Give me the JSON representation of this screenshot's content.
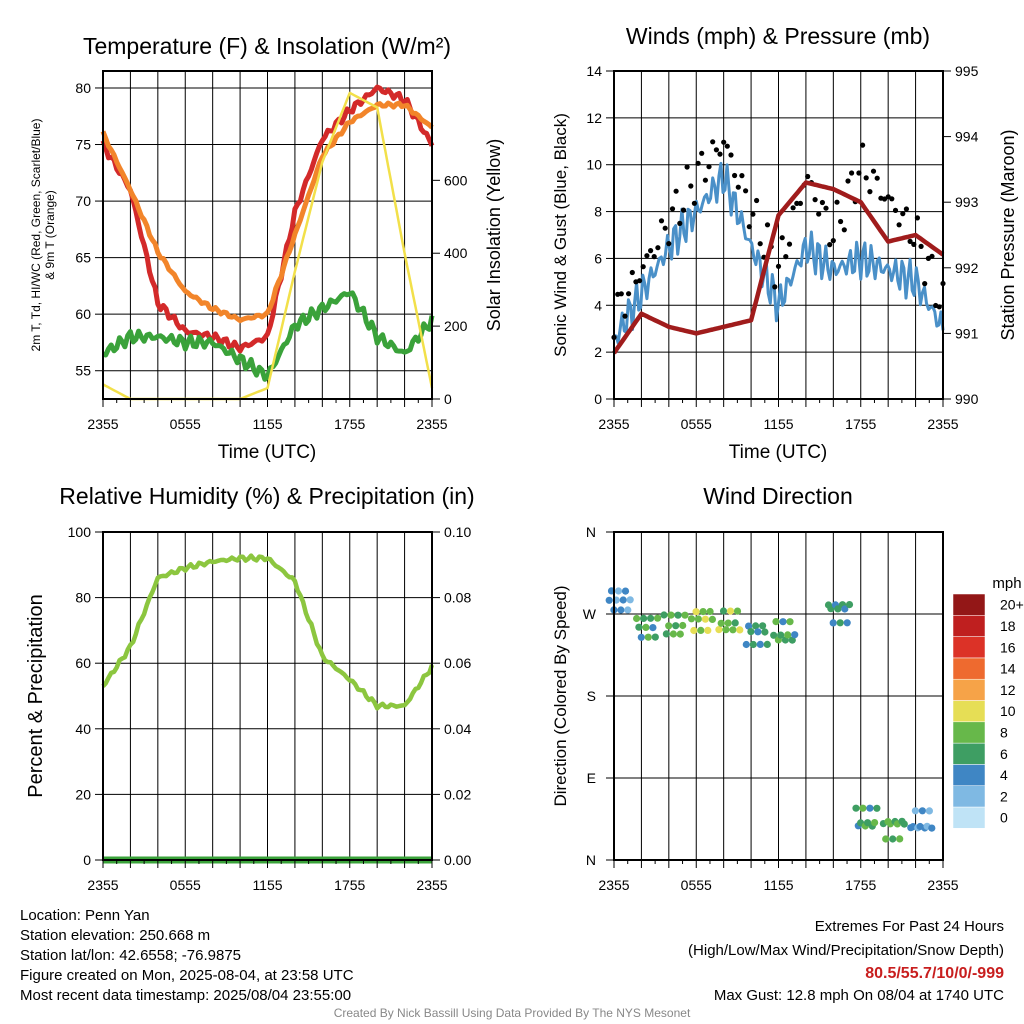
{
  "colors": {
    "temp": "#d32a2a",
    "dewpoint": "#3aa23a",
    "heat_index": "#4a90c8",
    "temp9m": "#f2852a",
    "solar": "#f2e04a",
    "wind": "#4a90c8",
    "gust": "#000000",
    "pressure": "#a01c1c",
    "rh": "#8cc63f",
    "precip": "#3aa23a",
    "extremes": "#c81e1e",
    "credit": "#888888"
  },
  "time_ticks": [
    "2355",
    "0555",
    "1155",
    "1755",
    "2355"
  ],
  "panels": {
    "temp": {
      "title": "Temperature (F) & Insolation (W/m²)",
      "ylabel_line1": "2m T, Td, HI/WC (Red, Green, Scarlet/Blue)",
      "ylabel_line2": "& 9m T (Orange)",
      "ylabel_right": "Solar Insolation (Yellow)",
      "xlabel": "Time (UTC)",
      "left_ticks": [
        "55",
        "60",
        "65",
        "70",
        "75",
        "80"
      ],
      "right_ticks": [
        "0",
        "200",
        "400",
        "600"
      ]
    },
    "wind": {
      "title": "Winds (mph) & Pressure (mb)",
      "ylabel_left": "Sonic Wind & Gust (Blue, Black)",
      "ylabel_right": "Station Pressure (Maroon)",
      "xlabel": "Time (UTC)",
      "left_ticks": [
        "0",
        "2",
        "4",
        "6",
        "8",
        "10",
        "12",
        "14"
      ],
      "right_ticks": [
        "990",
        "991",
        "992",
        "993",
        "994",
        "995"
      ]
    },
    "rh": {
      "title": "Relative Humidity (%) & Precipitation (in)",
      "ylabel_left": "Percent & Precipitation",
      "left_ticks": [
        "0",
        "20",
        "40",
        "60",
        "80",
        "100"
      ],
      "right_ticks": [
        "0.00",
        "0.02",
        "0.04",
        "0.06",
        "0.08",
        "0.10"
      ]
    },
    "dir": {
      "title": "Wind Direction",
      "ylabel_left": "Direction (Colored By Speed)",
      "left_ticks": [
        "N",
        "E",
        "S",
        "W",
        "N"
      ],
      "legend_title": "mph",
      "legend_labels": [
        "0",
        "2",
        "4",
        "6",
        "8",
        "10",
        "12",
        "14",
        "16",
        "18",
        "20+"
      ],
      "legend_colors": [
        "#bfe3f6",
        "#7fb9e3",
        "#3f86c4",
        "#3e9e63",
        "#67b84a",
        "#e6de55",
        "#f6a348",
        "#ee6a2f",
        "#dc3227",
        "#bf1f1f",
        "#931717"
      ]
    }
  },
  "chart_data": [
    {
      "type": "line",
      "title": "Temperature (F) & Insolation (W/m²)",
      "xlabel": "Time (UTC)",
      "ylabel": "2m T, Td, HI/WC (Red, Green, Scarlet/Blue) & 9m T (Orange)",
      "ylabel_right": "Solar Insolation (Yellow)",
      "x_hours": [
        0,
        2,
        4,
        6,
        8,
        10,
        12,
        14,
        16,
        18,
        20,
        22,
        24
      ],
      "x_ticks": [
        "2355",
        "0555",
        "1155",
        "1755",
        "2355"
      ],
      "ylim": [
        52.5,
        81.5
      ],
      "ylim_right": [
        0,
        900
      ],
      "series": [
        {
          "name": "2m T (Red)",
          "axis": "left",
          "values": [
            75,
            71,
            61,
            58.5,
            58,
            57,
            58,
            69,
            75.5,
            78,
            80,
            79,
            75
          ]
        },
        {
          "name": "Td (Green)",
          "axis": "left",
          "values": [
            56.5,
            58,
            58,
            57.5,
            57.5,
            56,
            54.5,
            59,
            60.5,
            62,
            58,
            56.5,
            59.5
          ]
        },
        {
          "name": "9m T (Orange)",
          "axis": "left",
          "values": [
            76,
            71,
            65.5,
            62,
            60.5,
            59.5,
            60,
            67,
            74,
            77,
            78.5,
            78.5,
            76.5
          ]
        },
        {
          "name": "Solar Insolation (Yellow)",
          "axis": "right",
          "values": [
            40,
            0,
            0,
            0,
            0,
            0,
            30,
            350,
            650,
            840,
            800,
            400,
            30
          ]
        }
      ]
    },
    {
      "type": "line",
      "title": "Winds (mph) & Pressure (mb)",
      "xlabel": "Time (UTC)",
      "ylabel": "Sonic Wind & Gust (Blue, Black)",
      "ylabel_right": "Station Pressure (Maroon)",
      "x_hours": [
        0,
        2,
        4,
        6,
        8,
        10,
        12,
        14,
        16,
        18,
        20,
        22,
        24
      ],
      "x_ticks": [
        "2355",
        "0555",
        "1155",
        "1755",
        "2355"
      ],
      "ylim": [
        0,
        14
      ],
      "ylim_right": [
        990,
        995
      ],
      "series": [
        {
          "name": "Sonic Wind (Blue)",
          "axis": "left",
          "values": [
            2.5,
            4.5,
            6.5,
            8,
            9.5,
            6.5,
            4,
            6.5,
            5.5,
            6,
            5.5,
            5,
            3
          ]
        },
        {
          "name": "Gust (Black)",
          "axis": "left",
          "values": [
            3.5,
            5.5,
            7.5,
            9.5,
            11,
            8,
            5.5,
            9.5,
            7,
            10,
            8.5,
            7,
            4
          ]
        },
        {
          "name": "Station Pressure (Maroon)",
          "axis": "right",
          "values": [
            990.7,
            991.3,
            991.1,
            991.0,
            991.1,
            991.2,
            992.8,
            993.3,
            993.2,
            993.0,
            992.4,
            992.5,
            992.2
          ]
        }
      ]
    },
    {
      "type": "line",
      "title": "Relative Humidity (%) & Precipitation (in)",
      "ylabel": "Percent & Precipitation",
      "x_hours": [
        0,
        2,
        4,
        6,
        8,
        10,
        12,
        14,
        16,
        18,
        20,
        22,
        24
      ],
      "x_ticks": [
        "2355",
        "0555",
        "1155",
        "1755",
        "2355"
      ],
      "ylim": [
        0,
        100
      ],
      "ylim_right": [
        0,
        0.1
      ],
      "series": [
        {
          "name": "Relative Humidity",
          "axis": "left",
          "values": [
            53,
            65,
            86,
            89,
            91,
            92,
            92,
            85,
            62,
            55,
            47,
            47,
            59
          ]
        },
        {
          "name": "Precipitation",
          "axis": "right",
          "values": [
            0,
            0,
            0,
            0,
            0,
            0,
            0,
            0,
            0,
            0,
            0,
            0,
            0
          ]
        }
      ]
    },
    {
      "type": "scatter",
      "title": "Wind Direction",
      "ylabel": "Direction (Colored By Speed)",
      "x_hours": [
        0.5,
        2.5,
        4.5,
        6.5,
        8.5,
        10.5,
        12.5,
        16.5,
        18.5,
        20.5,
        22.5
      ],
      "x_ticks": [
        "2355",
        "0555",
        "1155",
        "1755",
        "2355"
      ],
      "ylim": [
        0,
        360
      ],
      "y_ticks": [
        "N",
        "E",
        "S",
        "W",
        "N"
      ],
      "direction_deg": [
        285,
        255,
        258,
        263,
        262,
        248,
        250,
        272,
        45,
        35,
        42
      ],
      "speed_mph": [
        3,
        6,
        7,
        9,
        8,
        5,
        6,
        5,
        6,
        7,
        3
      ]
    }
  ],
  "footer": {
    "location": "Location: Penn Yan",
    "elevation": "Station elevation: 250.668 m",
    "latlon": "Station lat/lon: 42.6558; -76.9875",
    "created": "Figure created on Mon, 2025-08-04, at 23:58 UTC",
    "recent": "Most recent data timestamp: 2025/08/04 23:55:00",
    "extremes_title": "Extremes For Past 24 Hours",
    "extremes_sub": "(High/Low/Max Wind/Precipitation/Snow Depth)",
    "extremes_values": "80.5/55.7/10/0/-999",
    "max_gust": "Max Gust: 12.8 mph On 08/04 at 1740 UTC",
    "credit": "Created By Nick Bassill Using Data Provided By The NYS Mesonet"
  }
}
